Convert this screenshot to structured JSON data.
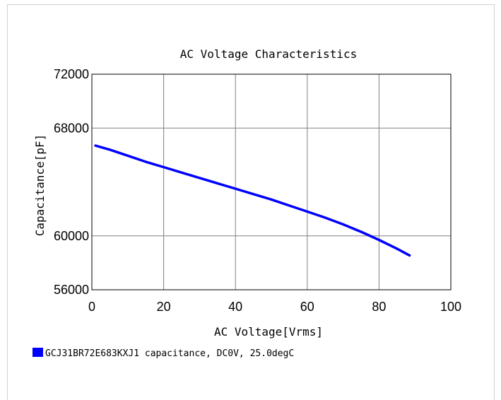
{
  "chart_data": {
    "type": "line",
    "title": "AC Voltage Characteristics",
    "xlabel": "AC Voltage[Vrms]",
    "ylabel": "Capacitance[pF]",
    "xlim": [
      0,
      100
    ],
    "ylim": [
      56000,
      72000
    ],
    "x_ticks": [
      "0",
      "20",
      "40",
      "60",
      "80",
      "100"
    ],
    "y_ticks": [
      "72000",
      "68000",
      "60000",
      "56000"
    ],
    "y_tick_values": [
      72000,
      68000,
      60000,
      56000
    ],
    "grid": true,
    "legend_position": "bottom-left",
    "series": [
      {
        "name": "GCJ31BR72E683KXJ1 capacitance, DC0V, 25.0degC",
        "color": "#0000ff",
        "x": [
          1,
          5,
          10,
          15,
          20,
          25,
          30,
          35,
          40,
          45,
          50,
          55,
          60,
          65,
          70,
          75,
          80,
          85,
          88.5
        ],
        "y": [
          66700,
          66400,
          65950,
          65500,
          65100,
          64700,
          64300,
          63900,
          63500,
          63100,
          62700,
          62250,
          61800,
          61350,
          60850,
          60300,
          59700,
          59050,
          58550
        ]
      }
    ]
  }
}
